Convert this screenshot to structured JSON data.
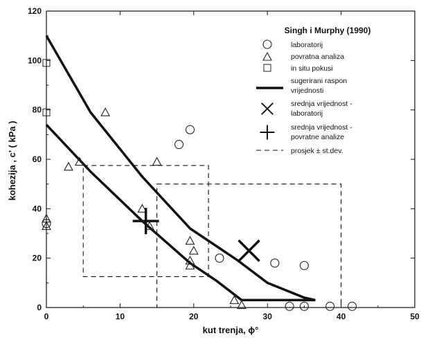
{
  "chart_data": {
    "type": "scatter",
    "title": "",
    "xlabel": "kut trenja, ϕ°",
    "ylabel": "kohezija , c' ( kPa )",
    "xlim": [
      0,
      50
    ],
    "ylim": [
      0,
      120
    ],
    "x_ticks": [
      0,
      10,
      20,
      30,
      40,
      50
    ],
    "y_ticks": [
      0,
      20,
      40,
      60,
      80,
      100,
      120
    ],
    "grid": false,
    "legend": {
      "placement": "top-right",
      "title": "Singh i Murphy (1990)",
      "entries": [
        {
          "marker": "circle",
          "label": "laboratorij"
        },
        {
          "marker": "triangle",
          "label": "povratna analiza"
        },
        {
          "marker": "square",
          "label": "in situ pokusi"
        },
        {
          "marker": "thick-line",
          "label": "sugerirani raspon vrijednosti"
        },
        {
          "marker": "x-cross",
          "label": "srednja vrijednost - laboratorij"
        },
        {
          "marker": "plus-cross",
          "label": "srednja vrijednost - povratne analize"
        },
        {
          "marker": "dashed-line",
          "label": "prosjek ± st.dev."
        }
      ]
    },
    "series": [
      {
        "name": "laboratorij",
        "marker": "circle",
        "points": [
          [
            0,
            34
          ],
          [
            18,
            66
          ],
          [
            19.5,
            72
          ],
          [
            23.5,
            20
          ],
          [
            31,
            18
          ],
          [
            35,
            17
          ],
          [
            33,
            0.5
          ],
          [
            35,
            0.5
          ],
          [
            38.5,
            0.5
          ],
          [
            41.5,
            0.5
          ]
        ]
      },
      {
        "name": "povratna analiza",
        "marker": "triangle",
        "points": [
          [
            0,
            36
          ],
          [
            0,
            33
          ],
          [
            3,
            57
          ],
          [
            4.5,
            59
          ],
          [
            8,
            79
          ],
          [
            13,
            40
          ],
          [
            14,
            33
          ],
          [
            15,
            59
          ],
          [
            19.5,
            27
          ],
          [
            19.5,
            19
          ],
          [
            19.5,
            17
          ],
          [
            20,
            23
          ],
          [
            25.5,
            3
          ],
          [
            26.5,
            1
          ]
        ]
      },
      {
        "name": "in situ pokusi",
        "marker": "square",
        "points": [
          [
            0,
            99
          ],
          [
            0,
            79
          ]
        ]
      },
      {
        "name": "sugerirani raspon vrijednosti",
        "marker": "thick-line",
        "lines": [
          [
            [
              0,
              110
            ],
            [
              6,
              79
            ],
            [
              13,
              53
            ],
            [
              19.5,
              32
            ],
            [
              26,
              19
            ],
            [
              30,
              10
            ],
            [
              35,
              4
            ],
            [
              36.5,
              3
            ]
          ],
          [
            [
              0,
              74
            ],
            [
              6,
              55
            ],
            [
              13,
              35
            ],
            [
              19.5,
              18
            ],
            [
              23,
              11
            ],
            [
              26.5,
              3
            ],
            [
              36.5,
              3
            ]
          ]
        ]
      },
      {
        "name": "srednja vrijednost - laboratorij",
        "marker": "x-cross",
        "points": [
          [
            27.5,
            23
          ]
        ]
      },
      {
        "name": "srednja vrijednost - povratne analize",
        "marker": "plus-cross",
        "points": [
          [
            13.5,
            35
          ]
        ]
      },
      {
        "name": "prosjek ± st.dev.",
        "marker": "dashed-line",
        "rects": [
          {
            "x": [
              5,
              22
            ],
            "y": [
              12.5,
              57.5
            ]
          },
          {
            "x": [
              15,
              40
            ],
            "y": [
              0,
              50
            ]
          }
        ]
      }
    ]
  }
}
